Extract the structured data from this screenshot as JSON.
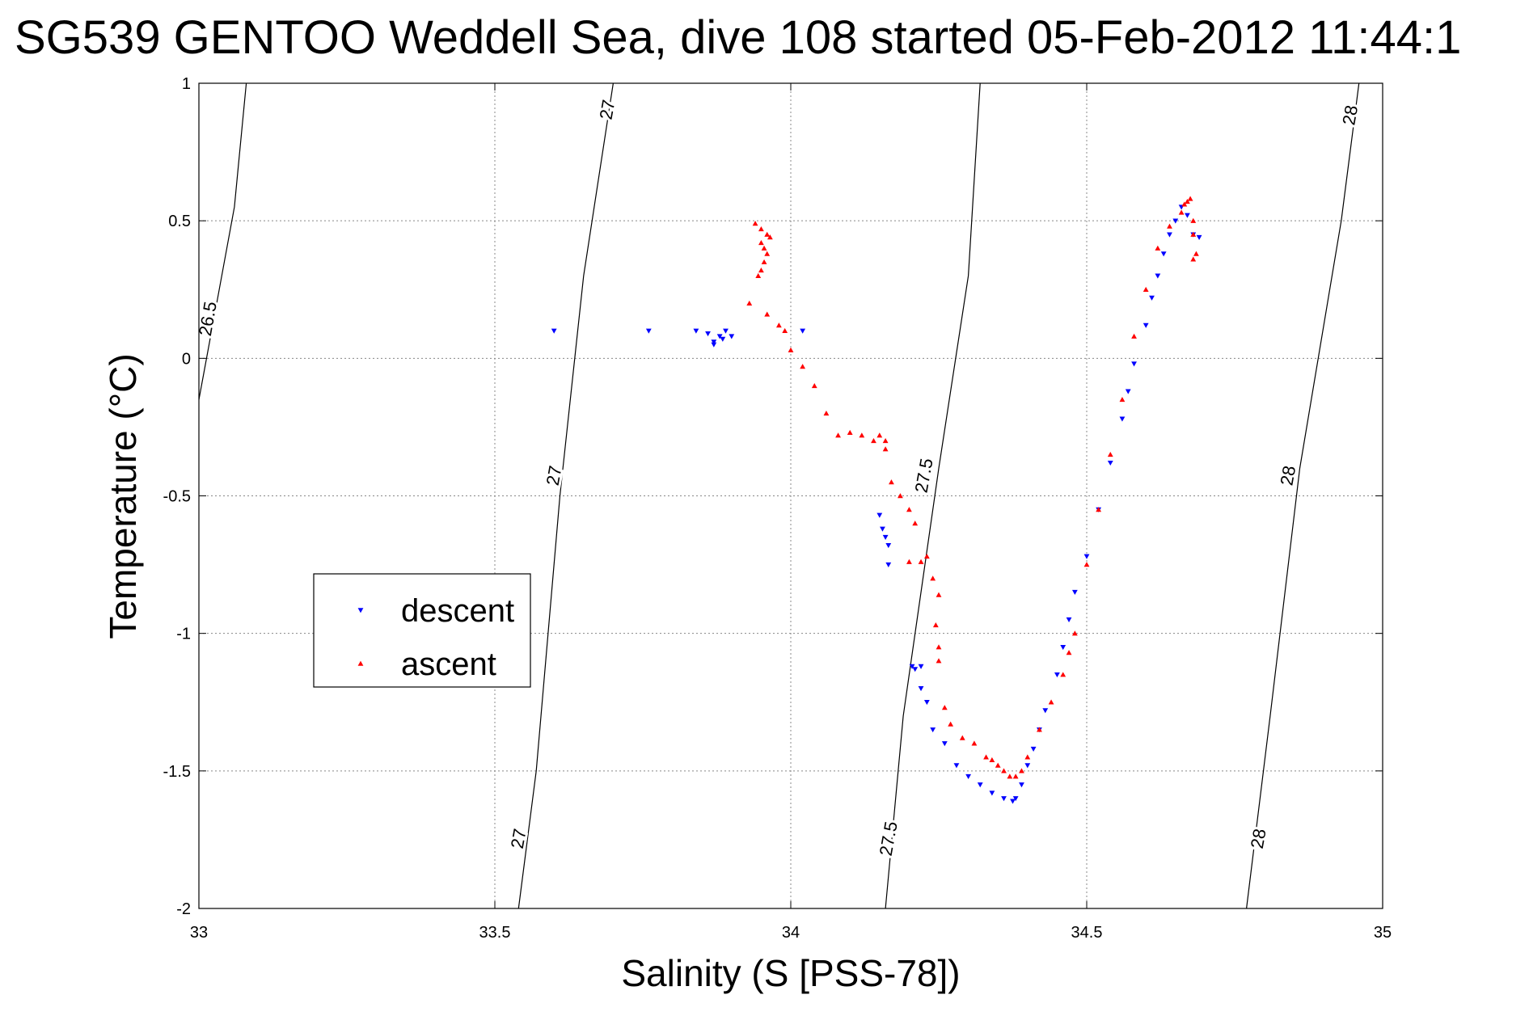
{
  "chart_data": {
    "type": "scatter",
    "title": "SG539 GENTOO Weddell Sea, dive 108 started 05-Feb-2012 11:44:1",
    "xlabel": "Salinity (S [PSS-78])",
    "ylabel": "Temperature (°C)",
    "xlim": [
      33,
      35
    ],
    "ylim": [
      -2,
      1
    ],
    "x_ticks": [
      33,
      33.5,
      34,
      34.5,
      35
    ],
    "y_ticks": [
      -2,
      -1.5,
      -1,
      -0.5,
      0,
      0.5,
      1
    ],
    "x_tick_labels": [
      "33",
      "33.5",
      "34",
      "34.5",
      "35"
    ],
    "y_tick_labels": [
      "-2",
      "-1.5",
      "-1",
      "-0.5",
      "0",
      "0.5",
      "1"
    ],
    "grid": true,
    "legend": {
      "position": "center-left",
      "entries": [
        {
          "name": "descent",
          "color": "#0000ff",
          "marker": "triangle-down"
        },
        {
          "name": "ascent",
          "color": "#ff0000",
          "marker": "triangle-up"
        }
      ]
    },
    "contours": [
      {
        "level": "26.5",
        "points": [
          [
            33.0,
            -0.15
          ],
          [
            33.03,
            0.2
          ],
          [
            33.06,
            0.55
          ],
          [
            33.08,
            1.0
          ]
        ]
      },
      {
        "level": "27",
        "points": [
          [
            33.54,
            -2.0
          ],
          [
            33.57,
            -1.5
          ],
          [
            33.61,
            -0.5
          ],
          [
            33.65,
            0.3
          ],
          [
            33.7,
            1.0
          ]
        ]
      },
      {
        "level": "27.5",
        "points": [
          [
            34.16,
            -2.0
          ],
          [
            34.19,
            -1.3
          ],
          [
            34.25,
            -0.4
          ],
          [
            34.3,
            0.3
          ],
          [
            34.32,
            1.0
          ]
        ]
      },
      {
        "level": "28",
        "points": [
          [
            34.77,
            -2.0
          ],
          [
            34.81,
            -1.3
          ],
          [
            34.86,
            -0.4
          ],
          [
            34.93,
            0.5
          ],
          [
            34.96,
            1.0
          ]
        ]
      }
    ],
    "contour_labels": [
      {
        "text": "26.5",
        "x": 33.025,
        "y": 0.14
      },
      {
        "text": "27",
        "x": 33.55,
        "y": -1.75
      },
      {
        "text": "27",
        "x": 33.61,
        "y": -0.43
      },
      {
        "text": "27",
        "x": 33.7,
        "y": 0.9
      },
      {
        "text": "27.5",
        "x": 34.175,
        "y": -1.75
      },
      {
        "text": "27.5",
        "x": 34.235,
        "y": -0.43
      },
      {
        "text": "28",
        "x": 34.8,
        "y": -1.75
      },
      {
        "text": "28",
        "x": 34.85,
        "y": -0.43
      },
      {
        "text": "28",
        "x": 34.955,
        "y": 0.88
      }
    ],
    "series": [
      {
        "name": "descent",
        "color": "#0000ff",
        "marker": "triangle-down",
        "x": [
          33.6,
          33.76,
          33.84,
          33.86,
          33.87,
          33.87,
          33.88,
          33.885,
          33.89,
          33.9,
          34.02,
          34.15,
          34.155,
          34.16,
          34.165,
          34.165,
          34.205,
          34.21,
          34.22,
          34.22,
          34.23,
          34.24,
          34.26,
          34.28,
          34.3,
          34.32,
          34.34,
          34.36,
          34.375,
          34.38,
          34.39,
          34.4,
          34.41,
          34.42,
          34.43,
          34.45,
          34.46,
          34.47,
          34.48,
          34.5,
          34.52,
          34.54,
          34.56,
          34.57,
          34.58,
          34.6,
          34.61,
          34.62,
          34.63,
          34.64,
          34.65,
          34.66,
          34.67,
          34.68,
          34.69
        ],
        "y": [
          0.1,
          0.1,
          0.1,
          0.09,
          0.06,
          0.05,
          0.08,
          0.07,
          0.1,
          0.08,
          0.1,
          -0.57,
          -0.62,
          -0.65,
          -0.68,
          -0.75,
          -1.12,
          -1.13,
          -1.12,
          -1.2,
          -1.25,
          -1.35,
          -1.4,
          -1.48,
          -1.52,
          -1.55,
          -1.58,
          -1.6,
          -1.61,
          -1.6,
          -1.55,
          -1.48,
          -1.42,
          -1.35,
          -1.28,
          -1.15,
          -1.05,
          -0.95,
          -0.85,
          -0.72,
          -0.55,
          -0.38,
          -0.22,
          -0.12,
          -0.02,
          0.12,
          0.22,
          0.3,
          0.38,
          0.45,
          0.5,
          0.55,
          0.52,
          0.45,
          0.44
        ]
      },
      {
        "name": "ascent",
        "color": "#ff0000",
        "marker": "triangle-up",
        "x": [
          33.94,
          33.95,
          33.95,
          33.955,
          33.96,
          33.96,
          33.965,
          33.955,
          33.95,
          33.945,
          33.93,
          33.96,
          33.98,
          33.99,
          34.0,
          34.02,
          34.04,
          34.06,
          34.08,
          34.1,
          34.12,
          34.14,
          34.15,
          34.16,
          34.16,
          34.17,
          34.185,
          34.2,
          34.21,
          34.2,
          34.22,
          34.23,
          34.24,
          34.25,
          34.245,
          34.25,
          34.25,
          34.26,
          34.27,
          34.29,
          34.31,
          34.33,
          34.34,
          34.35,
          34.36,
          34.37,
          34.38,
          34.39,
          34.4,
          34.42,
          34.44,
          34.46,
          34.47,
          34.48,
          34.5,
          34.52,
          34.54,
          34.56,
          34.58,
          34.6,
          34.62,
          34.64,
          34.66,
          34.665,
          34.67,
          34.675,
          34.68,
          34.68,
          34.685,
          34.68
        ],
        "y": [
          0.49,
          0.47,
          0.42,
          0.4,
          0.38,
          0.45,
          0.44,
          0.35,
          0.32,
          0.3,
          0.2,
          0.16,
          0.12,
          0.1,
          0.03,
          -0.03,
          -0.1,
          -0.2,
          -0.28,
          -0.27,
          -0.28,
          -0.3,
          -0.28,
          -0.3,
          -0.33,
          -0.45,
          -0.5,
          -0.55,
          -0.6,
          -0.74,
          -0.74,
          -0.72,
          -0.8,
          -0.86,
          -0.97,
          -1.05,
          -1.1,
          -1.27,
          -1.33,
          -1.38,
          -1.4,
          -1.45,
          -1.46,
          -1.48,
          -1.5,
          -1.52,
          -1.52,
          -1.5,
          -1.45,
          -1.35,
          -1.25,
          -1.15,
          -1.07,
          -1.0,
          -0.75,
          -0.55,
          -0.35,
          -0.15,
          0.08,
          0.25,
          0.4,
          0.48,
          0.53,
          0.56,
          0.57,
          0.58,
          0.5,
          0.45,
          0.38,
          0.36
        ]
      }
    ]
  }
}
